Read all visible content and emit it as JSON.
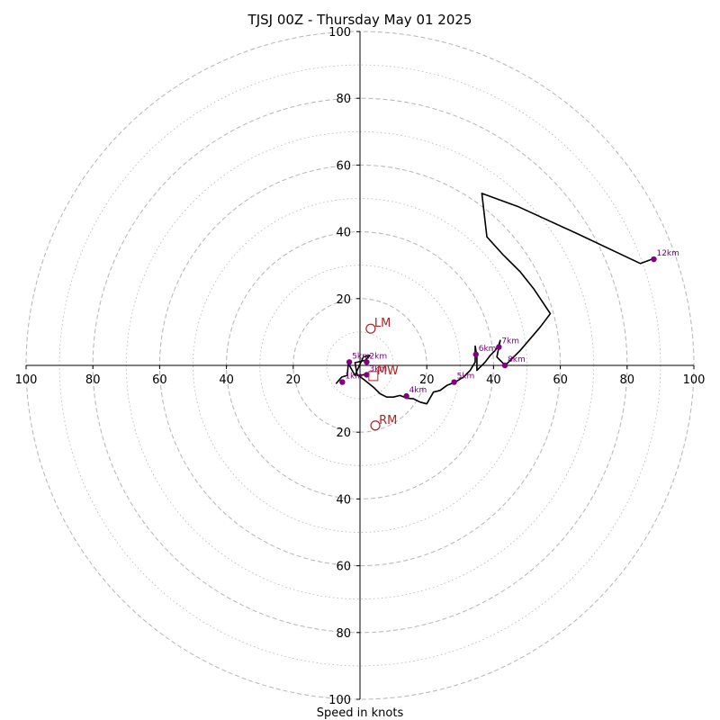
{
  "chart_data": {
    "type": "hodograph",
    "title": "TJSJ 00Z - Thursday May 01 2025",
    "xlabel": "Speed in knots",
    "units": "knots",
    "range": [
      0,
      100
    ],
    "ring_major_step": 20,
    "ring_minor_step": 10,
    "tick_labels": {
      "x_left": [
        "100",
        "80",
        "60",
        "40",
        "20"
      ],
      "x_right": [
        "20",
        "40",
        "60",
        "80",
        "100"
      ],
      "y_up": [
        "20",
        "40",
        "60",
        "80",
        "100"
      ],
      "y_down": [
        "20",
        "40",
        "60",
        "80",
        "100"
      ]
    },
    "hodograph_line": [
      [
        -7.2,
        -5.5
      ],
      [
        -5.5,
        -3.5
      ],
      [
        -3.8,
        -3.0
      ],
      [
        -3.5,
        0.6
      ],
      [
        -1.5,
        -3.0
      ],
      [
        1.0,
        2.5
      ],
      [
        3.0,
        3.0
      ],
      [
        1.5,
        1.5
      ],
      [
        -1.5,
        0.8
      ],
      [
        -0.8,
        -3.0
      ],
      [
        1.2,
        -2.8
      ],
      [
        -0.5,
        -3.0
      ],
      [
        1.5,
        -4.5
      ],
      [
        4.0,
        -6.5
      ],
      [
        6.0,
        -8.5
      ],
      [
        8.0,
        -9.5
      ],
      [
        10.0,
        -9.5
      ],
      [
        12.0,
        -9.0
      ],
      [
        14.0,
        -9.8
      ],
      [
        16.0,
        -10.0
      ],
      [
        18.0,
        -11.0
      ],
      [
        20.0,
        -11.5
      ],
      [
        22.0,
        -8.0
      ],
      [
        24.0,
        -7.5
      ],
      [
        26.0,
        -6.0
      ],
      [
        28.5,
        -5.0
      ],
      [
        31.0,
        -3.5
      ],
      [
        33.0,
        -1.5
      ],
      [
        34.5,
        1.0
      ],
      [
        34.5,
        3.5
      ],
      [
        34.5,
        5.8
      ],
      [
        35.0,
        2.5
      ],
      [
        35.0,
        -1.5
      ],
      [
        37.5,
        1.0
      ],
      [
        39.0,
        3.0
      ],
      [
        40.5,
        4.5
      ],
      [
        41.5,
        6.0
      ],
      [
        42.0,
        7.5
      ],
      [
        41.0,
        2.5
      ],
      [
        42.5,
        1.0
      ],
      [
        43.5,
        0.0
      ],
      [
        45.5,
        2.0
      ],
      [
        48.0,
        4.5
      ],
      [
        51.0,
        8.0
      ],
      [
        54.0,
        11.5
      ],
      [
        57.0,
        15.5
      ],
      [
        52.0,
        23.0
      ],
      [
        48.0,
        28.0
      ],
      [
        43.0,
        33.0
      ],
      [
        38.0,
        38.5
      ],
      [
        36.5,
        51.5
      ],
      [
        47.5,
        47.5
      ],
      [
        65.0,
        39.5
      ],
      [
        84.0,
        30.5
      ],
      [
        88.0,
        32.0
      ]
    ],
    "height_markers": [
      {
        "label": "1km",
        "u": -5.3,
        "v": -5.0
      },
      {
        "label": "2km",
        "u": 2.0,
        "v": 1.0
      },
      {
        "label": "3km",
        "u": 2.0,
        "v": -2.8
      },
      {
        "label": "4km",
        "u": 13.9,
        "v": -9.2
      },
      {
        "label": "5km",
        "u": 28.2,
        "v": -5.0
      },
      {
        "label": "5km",
        "u": -3.2,
        "v": 1.0
      },
      {
        "label": "6km",
        "u": 34.7,
        "v": 3.3
      },
      {
        "label": "7km",
        "u": 41.6,
        "v": 5.5
      },
      {
        "label": "8km",
        "u": 43.4,
        "v": 0.0
      },
      {
        "label": "12km",
        "u": 88.0,
        "v": 31.8
      }
    ],
    "storm_motion": [
      {
        "label": "LM",
        "u": 3.2,
        "v": 11.0,
        "shape": "circle"
      },
      {
        "label": "RM",
        "u": 4.6,
        "v": -18.0,
        "shape": "circle"
      },
      {
        "label": "MW",
        "u": 4.0,
        "v": -3.2,
        "shape": "square"
      }
    ],
    "colors": {
      "ring": "#bbbbbb",
      "axis": "#000000",
      "hodograph": "#000000",
      "height_marker": "#800080",
      "storm_motion": "#b22222"
    }
  }
}
